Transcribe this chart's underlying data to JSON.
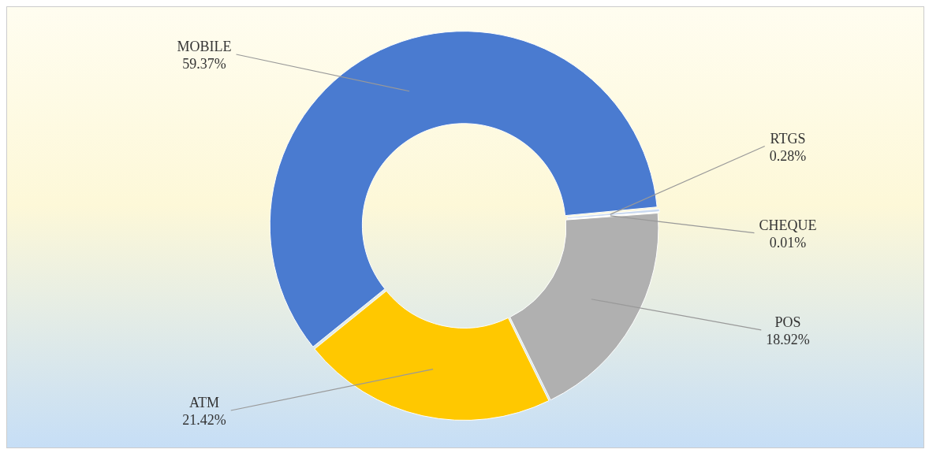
{
  "chart_data": {
    "type": "donut",
    "categories": [
      "MOBILE",
      "RTGS",
      "CHEQUE",
      "POS",
      "ATM"
    ],
    "values": [
      59.37,
      0.28,
      0.01,
      18.92,
      21.42
    ],
    "colors": [
      "#4a7bd0",
      "#c9d9f0",
      "#9a9a9a",
      "#b0b0b0",
      "#ffc800"
    ],
    "value_labels": [
      "59.37%",
      "0.28%",
      "0.01%",
      "18.92%",
      "21.42%"
    ],
    "legend": false
  }
}
